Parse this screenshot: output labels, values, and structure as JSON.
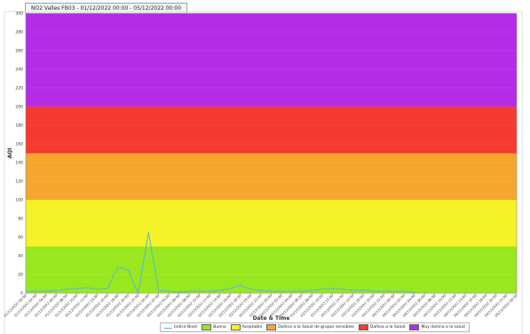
{
  "title": "NO2 Valles FB03 - 01/12/2022 00:00 - 05/12/2022 00:00",
  "chart_data": {
    "type": "line",
    "xlabel": "Date & Time",
    "ylabel": "AQI",
    "ylim": [
      0,
      300
    ],
    "yticks": [
      0,
      20,
      40,
      60,
      80,
      100,
      120,
      140,
      160,
      180,
      200,
      220,
      240,
      260,
      280,
      300
    ],
    "bands": [
      {
        "name": "Bueno",
        "from": 0,
        "to": 50,
        "color": "#99e81f"
      },
      {
        "name": "Aceptable",
        "from": 50,
        "to": 100,
        "color": "#f5f226"
      },
      {
        "name": "Dañina a la Salud de grupos sensibles",
        "from": 100,
        "to": 150,
        "color": "#f7a62d"
      },
      {
        "name": "Dañina a la Salud",
        "from": 150,
        "to": 200,
        "color": "#f53a2f"
      },
      {
        "name": "Muy dañina a la salud",
        "from": 200,
        "to": 300,
        "color": "#b42be8"
      }
    ],
    "x": [
      "01/12/2022 00:00",
      "01/12/2022 02:00",
      "01/12/2022 04:00",
      "01/12/2022 06:00",
      "01/12/2022 08:00",
      "01/12/2022 10:00",
      "01/12/2022 12:00",
      "01/12/2022 14:00",
      "01/12/2022 16:00",
      "01/12/2022 18:00",
      "01/12/2022 20:00",
      "01/12/2022 22:00",
      "02/12/2022 00:00",
      "02/12/2022 02:00",
      "02/12/2022 04:00",
      "02/12/2022 06:00",
      "02/12/2022 08:00",
      "02/12/2022 10:00",
      "02/12/2022 12:00",
      "02/12/2022 14:00",
      "02/12/2022 16:00",
      "02/12/2022 18:00",
      "02/12/2022 20:00",
      "02/12/2022 22:00",
      "03/12/2022 00:00",
      "03/12/2022 02:00",
      "03/12/2022 04:00",
      "03/12/2022 06:00",
      "03/12/2022 08:00",
      "03/12/2022 10:00",
      "03/12/2022 12:00",
      "03/12/2022 14:00",
      "03/12/2022 16:00",
      "03/12/2022 18:00",
      "03/12/2022 20:00",
      "03/12/2022 22:00",
      "04/12/2022 00:00",
      "04/12/2022 02:00",
      "04/12/2022 04:00",
      "04/12/2022 06:00",
      "04/12/2022 08:00",
      "04/12/2022 10:00",
      "04/12/2022 12:00",
      "04/12/2022 14:00",
      "04/12/2022 16:00",
      "04/12/2022 18:00",
      "04/12/2022 20:00",
      "04/12/2022 22:00",
      "05/12/2022 00:00"
    ],
    "series": [
      {
        "name": "Indice Nivel",
        "color": "#55b8d8",
        "values": [
          2,
          2,
          2,
          3,
          4,
          5,
          6,
          4,
          5,
          28,
          25,
          0,
          65,
          3,
          2,
          1,
          2,
          2,
          2,
          3,
          5,
          8,
          4,
          3,
          2,
          2,
          2,
          2,
          3,
          4,
          5,
          4,
          3,
          3,
          2,
          2,
          2,
          2,
          1,
          null,
          null,
          null,
          null,
          null,
          null,
          null,
          null,
          null,
          null
        ]
      }
    ]
  }
}
